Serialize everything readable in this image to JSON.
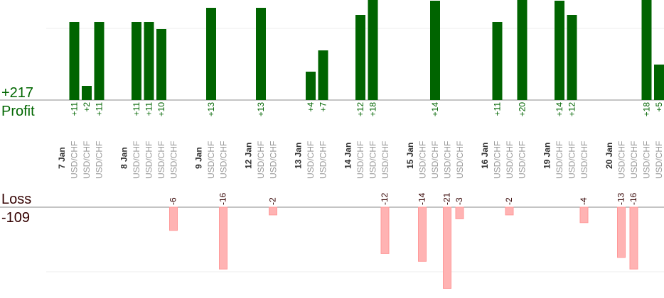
{
  "labels": {
    "profit_total": "+217",
    "profit_label": "Profit",
    "loss_label": "Loss",
    "loss_total": "-109"
  },
  "colors": {
    "profit": "#006400",
    "loss": "#ffb3b3",
    "loss_text": "#330000",
    "tick_text": "#999999",
    "date_text": "#333333"
  },
  "chart_data": {
    "type": "bar",
    "pair": "USD/CHF",
    "dates": [
      "7 Jan",
      "8 Jan",
      "9 Jan",
      "12 Jan",
      "13 Jan",
      "14 Jan",
      "15 Jan",
      "16 Jan",
      "19 Jan",
      "20 Jan"
    ],
    "days": [
      {
        "date": "7 Jan",
        "trades": [
          {
            "v": 11
          },
          {
            "v": 2
          },
          {
            "v": 11
          }
        ]
      },
      {
        "date": "8 Jan",
        "trades": [
          {
            "v": 11
          },
          {
            "v": 11
          },
          {
            "v": 10
          },
          {
            "v": -6
          }
        ]
      },
      {
        "date": "9 Jan",
        "trades": [
          {
            "v": 13
          },
          {
            "v": -16
          }
        ]
      },
      {
        "date": "12 Jan",
        "trades": [
          {
            "v": 13
          },
          {
            "v": -2
          }
        ]
      },
      {
        "date": "13 Jan",
        "trades": [
          {
            "v": 4
          },
          {
            "v": 7
          }
        ]
      },
      {
        "date": "14 Jan",
        "trades": [
          {
            "v": 12
          },
          {
            "v": 18
          },
          {
            "v": -12
          }
        ]
      },
      {
        "date": "15 Jan",
        "trades": [
          {
            "v": -14
          },
          {
            "v": 14
          },
          {
            "v": -21
          },
          {
            "v": -3
          }
        ]
      },
      {
        "date": "16 Jan",
        "trades": [
          {
            "v": 11
          },
          {
            "v": -2
          },
          {
            "v": 20
          }
        ]
      },
      {
        "date": "19 Jan",
        "trades": [
          {
            "v": 14
          },
          {
            "v": 12
          },
          {
            "v": -4
          }
        ]
      },
      {
        "date": "20 Jan",
        "trades": [
          {
            "v": -13
          },
          {
            "v": -16
          },
          {
            "v": 18
          },
          {
            "v": 5
          }
        ]
      }
    ],
    "totals": {
      "profit": 217,
      "loss": -109
    },
    "profit_ylim": [
      0,
      14
    ],
    "loss_ylim": [
      -21,
      0
    ]
  }
}
